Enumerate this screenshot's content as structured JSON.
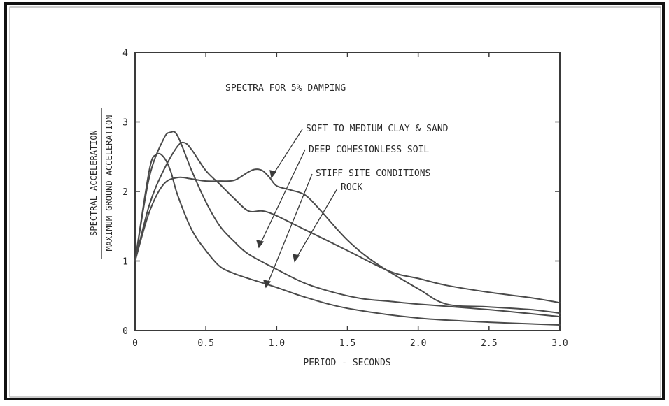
{
  "chart_data": {
    "type": "line",
    "title": "SPECTRA FOR 5% DAMPING",
    "xlabel": "PERIOD - SECONDS",
    "ylabel_numerator": "SPECTRAL ACCELERATION",
    "ylabel_denominator": "MAXIMUM GROUND ACCELERATION",
    "xlim": [
      0,
      3.0
    ],
    "ylim": [
      0,
      4
    ],
    "x_ticks": [
      "0",
      "0.5",
      "1.0",
      "1.5",
      "2.0",
      "2.5",
      "3.0"
    ],
    "y_ticks": [
      "0",
      "1",
      "2",
      "3",
      "4"
    ],
    "grid": false,
    "line_color": "#4a4a4a",
    "series": [
      {
        "name": "SOFT TO MEDIUM CLAY & SAND",
        "x": [
          0,
          0.1,
          0.2,
          0.3,
          0.4,
          0.5,
          0.6,
          0.7,
          0.8,
          0.85,
          0.9,
          0.95,
          1.0,
          1.1,
          1.2,
          1.3,
          1.5,
          1.7,
          2.0,
          2.2,
          2.5,
          2.8,
          3.0
        ],
        "y": [
          1.0,
          1.7,
          2.1,
          2.2,
          2.18,
          2.15,
          2.15,
          2.16,
          2.28,
          2.32,
          2.3,
          2.2,
          2.08,
          2.02,
          1.95,
          1.75,
          1.3,
          0.97,
          0.6,
          0.38,
          0.34,
          0.3,
          0.25
        ]
      },
      {
        "name": "DEEP COHESIONLESS SOIL",
        "x": [
          0,
          0.1,
          0.2,
          0.3,
          0.35,
          0.4,
          0.5,
          0.6,
          0.7,
          0.8,
          0.9,
          1.0,
          1.2,
          1.5,
          1.8,
          2.0,
          2.2,
          2.5,
          2.8,
          3.0
        ],
        "y": [
          1.0,
          1.8,
          2.3,
          2.65,
          2.7,
          2.6,
          2.3,
          2.1,
          1.9,
          1.72,
          1.72,
          1.65,
          1.45,
          1.15,
          0.85,
          0.75,
          0.65,
          0.55,
          0.47,
          0.4
        ]
      },
      {
        "name": "STIFF SITE CONDITIONS",
        "x": [
          0,
          0.1,
          0.2,
          0.25,
          0.3,
          0.4,
          0.5,
          0.6,
          0.7,
          0.8,
          1.0,
          1.2,
          1.4,
          1.6,
          1.8,
          2.0,
          2.5,
          3.0
        ],
        "y": [
          1.0,
          2.2,
          2.75,
          2.85,
          2.8,
          2.3,
          1.85,
          1.5,
          1.28,
          1.1,
          0.88,
          0.68,
          0.55,
          0.46,
          0.42,
          0.38,
          0.3,
          0.2
        ]
      },
      {
        "name": "ROCK",
        "x": [
          0,
          0.1,
          0.15,
          0.2,
          0.25,
          0.3,
          0.4,
          0.5,
          0.6,
          0.7,
          0.8,
          1.0,
          1.2,
          1.5,
          2.0,
          2.5,
          3.0
        ],
        "y": [
          1.0,
          2.3,
          2.53,
          2.5,
          2.3,
          1.95,
          1.45,
          1.15,
          0.92,
          0.82,
          0.75,
          0.62,
          0.48,
          0.32,
          0.18,
          0.12,
          0.08
        ]
      }
    ],
    "annotations": [
      "SOFT TO MEDIUM CLAY & SAND",
      "DEEP COHESIONLESS SOIL",
      "STIFF SITE CONDITIONS",
      "ROCK"
    ]
  }
}
